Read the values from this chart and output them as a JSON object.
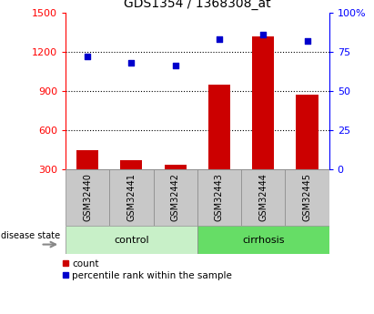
{
  "title": "GDS1354 / 1368308_at",
  "samples": [
    "GSM32440",
    "GSM32441",
    "GSM32442",
    "GSM32443",
    "GSM32444",
    "GSM32445"
  ],
  "counts": [
    450,
    370,
    340,
    950,
    1320,
    870
  ],
  "percentile_ranks": [
    72,
    68,
    66,
    83,
    86,
    82
  ],
  "left_ylim": [
    300,
    1500
  ],
  "right_ylim": [
    0,
    100
  ],
  "left_yticks": [
    300,
    600,
    900,
    1200,
    1500
  ],
  "right_yticks": [
    0,
    25,
    50,
    75,
    100
  ],
  "right_yticklabels": [
    "0",
    "25",
    "50",
    "75",
    "100%"
  ],
  "bar_color": "#cc0000",
  "scatter_color": "#0000cc",
  "control_label": "control",
  "cirrhosis_label": "cirrhosis",
  "disease_state_label": "disease state",
  "legend_count": "count",
  "legend_percentile": "percentile rank within the sample",
  "tick_bg_color": "#c8c8c8",
  "control_bg": "#c8f0c8",
  "cirrhosis_bg": "#66dd66",
  "figsize": [
    4.11,
    3.45
  ],
  "dpi": 100
}
